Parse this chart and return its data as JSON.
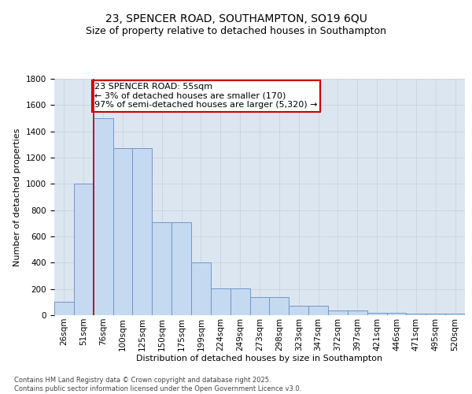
{
  "title": "23, SPENCER ROAD, SOUTHAMPTON, SO19 6QU",
  "subtitle": "Size of property relative to detached houses in Southampton",
  "xlabel": "Distribution of detached houses by size in Southampton",
  "ylabel": "Number of detached properties",
  "categories": [
    "26sqm",
    "51sqm",
    "76sqm",
    "100sqm",
    "125sqm",
    "150sqm",
    "175sqm",
    "199sqm",
    "224sqm",
    "249sqm",
    "273sqm",
    "298sqm",
    "323sqm",
    "347sqm",
    "372sqm",
    "397sqm",
    "421sqm",
    "446sqm",
    "471sqm",
    "495sqm",
    "520sqm"
  ],
  "values": [
    105,
    1000,
    1500,
    1270,
    1270,
    710,
    710,
    400,
    205,
    205,
    140,
    140,
    70,
    70,
    35,
    35,
    20,
    20,
    10,
    10,
    10
  ],
  "bar_color": "#c5d9f1",
  "bar_edge_color": "#7096c8",
  "vline_color": "#cc0000",
  "annotation_text": "23 SPENCER ROAD: 55sqm\n← 3% of detached houses are smaller (170)\n97% of semi-detached houses are larger (5,320) →",
  "annotation_box_color": "#ffffff",
  "annotation_box_edge": "#cc0000",
  "grid_color": "#c8d4e0",
  "background_color": "#dce6f1",
  "footer_text": "Contains HM Land Registry data © Crown copyright and database right 2025.\nContains public sector information licensed under the Open Government Licence v3.0.",
  "title_fontsize": 10,
  "subtitle_fontsize": 9,
  "ylabel_fontsize": 8,
  "xlabel_fontsize": 8,
  "tick_fontsize": 7.5,
  "annotation_fontsize": 8,
  "footer_fontsize": 6,
  "ylim": [
    0,
    1800
  ]
}
